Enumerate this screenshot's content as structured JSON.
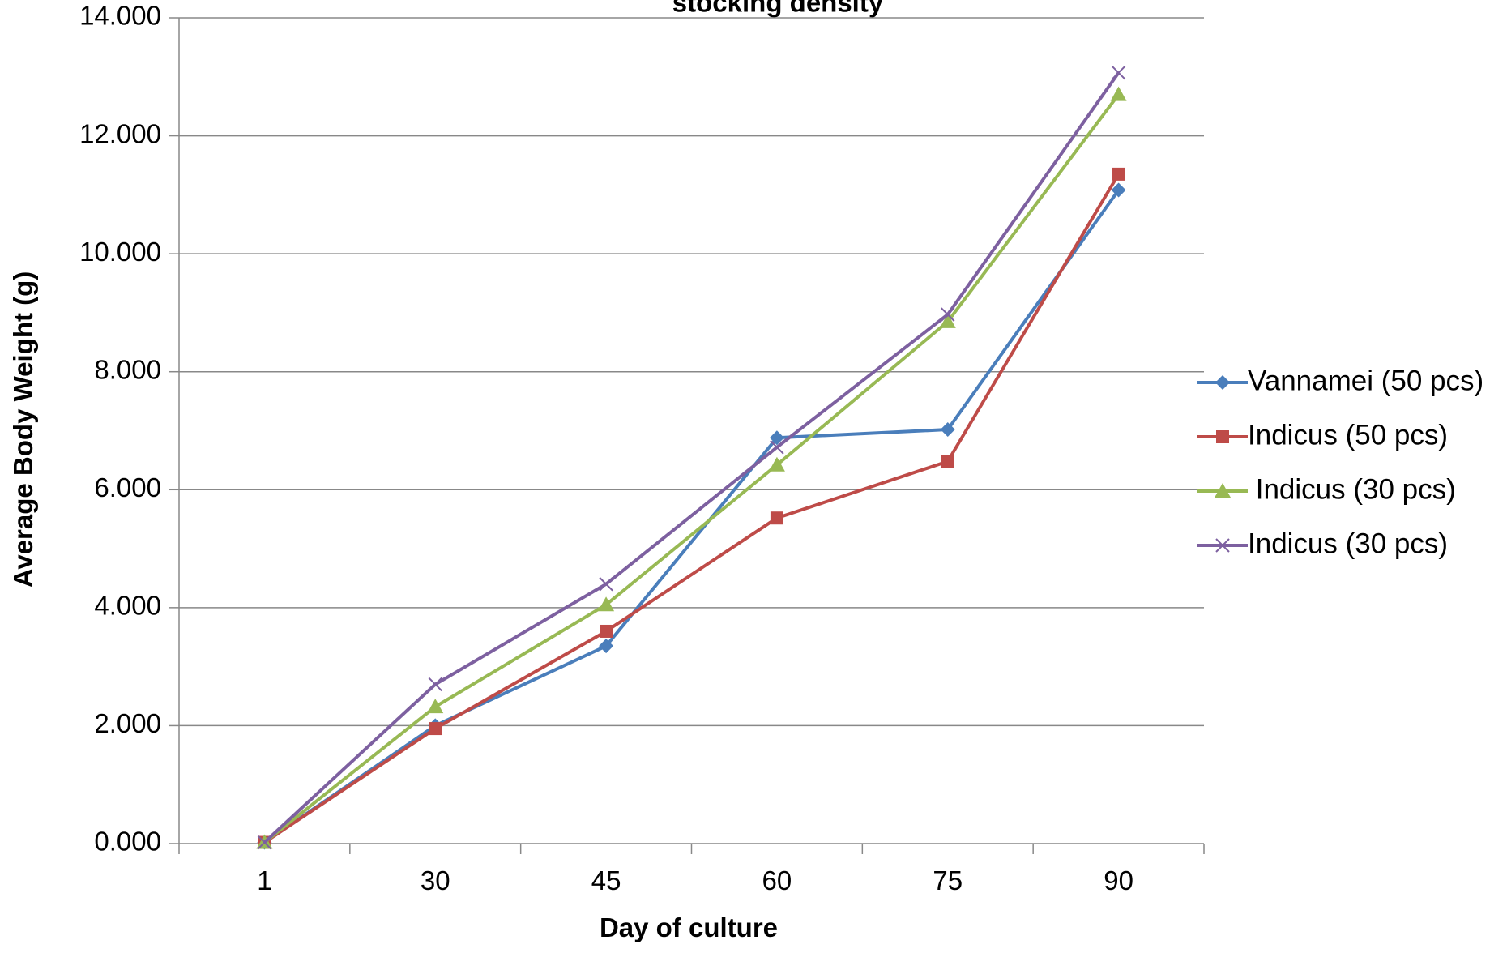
{
  "chart_data": {
    "type": "line",
    "title": "stocking density",
    "xlabel": "Day of culture",
    "ylabel": "Average Body Weight (g)",
    "categories": [
      "1",
      "30",
      "45",
      "60",
      "75",
      "90"
    ],
    "ylim": [
      0,
      14
    ],
    "yticks": [
      "0.000",
      "2.000",
      "4.000",
      "6.000",
      "8.000",
      "10.000",
      "12.000",
      "14.000"
    ],
    "grid": true,
    "legend_position": "right",
    "series": [
      {
        "name": "Vannamei (50 pcs)",
        "values": [
          0.02,
          2.0,
          3.35,
          6.88,
          7.02,
          11.08
        ],
        "color": "#4a7ebb",
        "marker": "diamond"
      },
      {
        "name": "Indicus (50 pcs)",
        "values": [
          0.02,
          1.95,
          3.6,
          5.52,
          6.48,
          11.35
        ],
        "color": "#be4b48",
        "marker": "square"
      },
      {
        "name": " Indicus (30 pcs)",
        "values": [
          0.02,
          2.32,
          4.05,
          6.42,
          8.85,
          12.7
        ],
        "color": "#98b954",
        "marker": "triangle"
      },
      {
        "name": "Indicus (30 pcs)",
        "values": [
          0.02,
          2.7,
          4.4,
          6.72,
          8.97,
          13.07
        ],
        "color": "#7d60a0",
        "marker": "x"
      }
    ]
  }
}
